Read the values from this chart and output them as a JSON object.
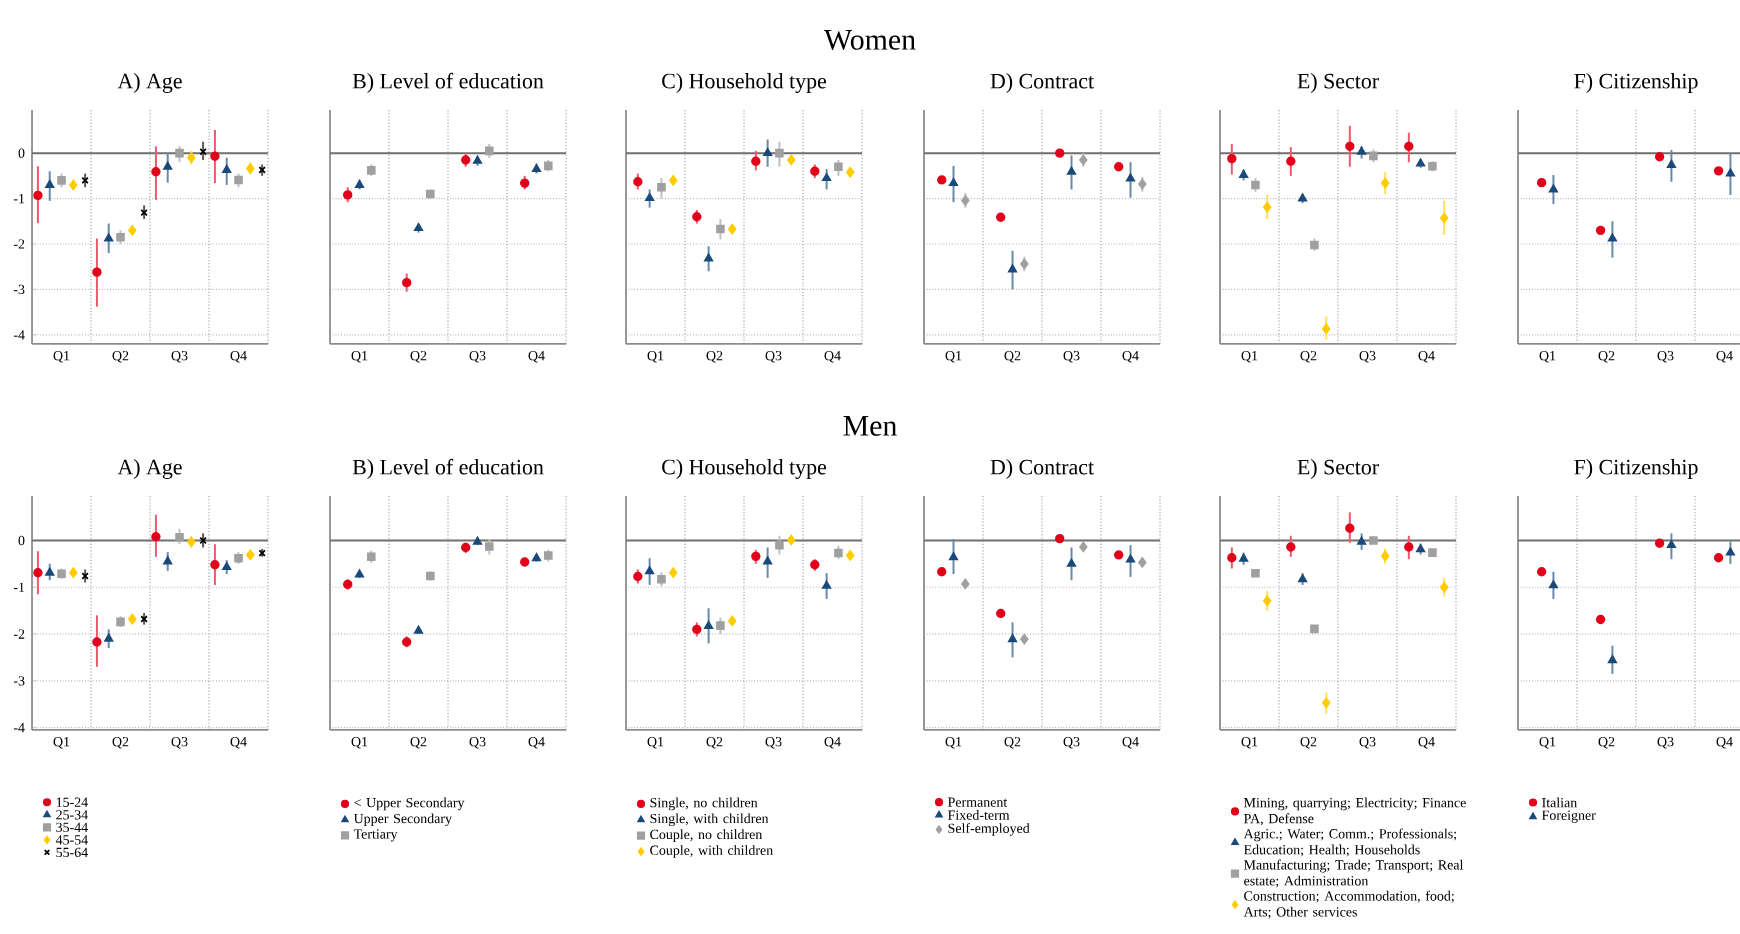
{
  "chart_data": [
    {
      "type": "scatter",
      "title": "A) Age",
      "categories": [
        "Q1",
        "Q2",
        "Q3",
        "Q4"
      ],
      "ylim": [
        -4.2,
        0.95
      ],
      "yticks": [
        -4,
        -3,
        -2,
        -1,
        0
      ],
      "grid": true,
      "legend": false,
      "ref_lines": [
        {
          "axis": "y",
          "value": 0,
          "color": "#707070"
        }
      ],
      "series": [
        {
          "color": "#e2001a",
          "marker": "circle",
          "values": [
            -0.93,
            -2.62,
            -0.41,
            -0.07
          ],
          "errors": [
            [
              -1.54,
              -0.29
            ],
            [
              -3.38,
              -1.88
            ],
            [
              -1.03,
              0.15
            ],
            [
              -0.66,
              0.51
            ]
          ]
        },
        {
          "color": "#1a4a7a",
          "marker": "triangle",
          "values": [
            -0.7,
            -1.88,
            -0.3,
            -0.37
          ],
          "errors": [
            [
              -1.05,
              -0.4
            ],
            [
              -2.2,
              -1.55
            ],
            [
              -0.65,
              0
            ],
            [
              -0.7,
              -0.1
            ]
          ]
        },
        {
          "color": "#a0a0a0",
          "marker": "square",
          "values": [
            -0.6,
            -1.85,
            0,
            -0.59
          ],
          "errors": [
            [
              -0.75,
              -0.45
            ],
            [
              -2.0,
              -1.7
            ],
            [
              -0.2,
              0.15
            ],
            [
              -0.75,
              -0.45
            ]
          ]
        },
        {
          "color": "#ffcc00",
          "marker": "diamond",
          "values": [
            -0.7,
            -1.7,
            -0.1,
            -0.34
          ],
          "errors": [
            [
              -0.8,
              -0.6
            ],
            [
              -1.8,
              -1.6
            ],
            [
              -0.25,
              0.05
            ],
            [
              -0.45,
              -0.2
            ]
          ]
        },
        {
          "color": "#000000",
          "marker": "cross",
          "values": [
            -0.6,
            -1.31,
            0.03,
            -0.37
          ],
          "errors": [
            [
              -0.75,
              -0.45
            ],
            [
              -1.45,
              -1.15
            ],
            [
              -0.15,
              0.25
            ],
            [
              -0.5,
              -0.25
            ]
          ]
        }
      ]
    },
    {
      "type": "scatter",
      "title": "B) Level of education",
      "categories": [
        "Q1",
        "Q2",
        "Q3",
        "Q4"
      ],
      "ylim": [
        -4.2,
        0.95
      ],
      "yticks": [
        -4,
        -3,
        -2,
        -1,
        0
      ],
      "tick_labels": "x",
      "grid": true,
      "legend": false,
      "ref_lines": [
        {
          "axis": "y",
          "value": 0,
          "color": "#707070"
        }
      ],
      "series": [
        {
          "color": "#e2001a",
          "marker": "circle",
          "values": [
            -0.92,
            -2.85,
            -0.15,
            -0.66
          ],
          "errors": [
            [
              -1.08,
              -0.75
            ],
            [
              -3.05,
              -2.65
            ],
            [
              -0.3,
              0
            ],
            [
              -0.8,
              -0.5
            ]
          ]
        },
        {
          "color": "#1a4a7a",
          "marker": "triangle",
          "values": [
            -0.7,
            -1.65,
            -0.17,
            -0.35
          ],
          "errors": [
            [
              -0.8,
              -0.6
            ],
            [
              -1.75,
              -1.55
            ],
            [
              -0.28,
              -0.05
            ],
            [
              -0.45,
              -0.25
            ]
          ]
        },
        {
          "color": "#a0a0a0",
          "marker": "square",
          "values": [
            -0.38,
            -0.9,
            0.05,
            -0.28
          ],
          "errors": [
            [
              -0.5,
              -0.25
            ],
            [
              -1.0,
              -0.8
            ],
            [
              -0.1,
              0.2
            ],
            [
              -0.4,
              -0.15
            ]
          ]
        }
      ]
    },
    {
      "type": "scatter",
      "subtitle": "Women",
      "title": "C) Household type",
      "categories": [
        "Q1",
        "Q2",
        "Q3",
        "Q4"
      ],
      "ylim": [
        -4.2,
        0.95
      ],
      "yticks": [
        -4,
        -3,
        -2,
        -1,
        0
      ],
      "tick_labels": "x",
      "grid": true,
      "legend": false,
      "ref_lines": [
        {
          "axis": "y",
          "value": 0,
          "color": "#707070"
        }
      ],
      "series": [
        {
          "color": "#e2001a",
          "marker": "circle",
          "values": [
            -0.63,
            -1.4,
            -0.18,
            -0.4
          ],
          "errors": [
            [
              -0.8,
              -0.45
            ],
            [
              -1.55,
              -1.25
            ],
            [
              -0.38,
              0.05
            ],
            [
              -0.55,
              -0.25
            ]
          ]
        },
        {
          "color": "#1a4a7a",
          "marker": "triangle",
          "values": [
            -0.99,
            -2.32,
            0,
            -0.55
          ],
          "errors": [
            [
              -1.2,
              -0.8
            ],
            [
              -2.6,
              -2.05
            ],
            [
              -0.3,
              0.3
            ],
            [
              -0.8,
              -0.35
            ]
          ]
        },
        {
          "color": "#a0a0a0",
          "marker": "square",
          "values": [
            -0.75,
            -1.67,
            0,
            -0.3
          ],
          "errors": [
            [
              -1.0,
              -0.55
            ],
            [
              -1.9,
              -1.45
            ],
            [
              -0.3,
              0.25
            ],
            [
              -0.5,
              -0.15
            ]
          ]
        },
        {
          "color": "#ffcc00",
          "marker": "diamond",
          "values": [
            -0.6,
            -1.67,
            -0.15,
            -0.42
          ],
          "errors": [
            [
              -0.7,
              -0.5
            ],
            [
              -1.77,
              -1.57
            ],
            [
              -0.25,
              -0.05
            ],
            [
              -0.5,
              -0.32
            ]
          ]
        }
      ]
    },
    {
      "type": "scatter",
      "title": "D) Contract",
      "categories": [
        "Q1",
        "Q2",
        "Q3",
        "Q4"
      ],
      "ylim": [
        -4.2,
        0.95
      ],
      "yticks": [
        -4,
        -3,
        -2,
        -1,
        0
      ],
      "tick_labels": "x",
      "grid": true,
      "legend": false,
      "ref_lines": [
        {
          "axis": "y",
          "value": 0,
          "color": "#707070"
        }
      ],
      "series": [
        {
          "color": "#e2001a",
          "marker": "circle",
          "values": [
            -0.59,
            -1.41,
            0,
            -0.3
          ],
          "errors": [
            [
              -0.65,
              -0.52
            ],
            [
              -1.46,
              -1.36
            ],
            [
              -0.07,
              0.07
            ],
            [
              -0.36,
              -0.24
            ]
          ]
        },
        {
          "color": "#1a4a7a",
          "marker": "triangle",
          "values": [
            -0.66,
            -2.56,
            -0.41,
            -0.56
          ],
          "errors": [
            [
              -1.08,
              -0.28
            ],
            [
              -3.0,
              -2.15
            ],
            [
              -0.8,
              -0.05
            ],
            [
              -0.98,
              -0.2
            ]
          ]
        },
        {
          "color": "#a0a0a0",
          "marker": "diamond",
          "values": [
            -1.04,
            -2.44,
            -0.15,
            -0.68
          ],
          "errors": [
            [
              -1.2,
              -0.88
            ],
            [
              -2.6,
              -2.28
            ],
            [
              -0.3,
              0
            ],
            [
              -0.85,
              -0.52
            ]
          ]
        }
      ]
    },
    {
      "type": "scatter",
      "title": "E) Sector",
      "categories": [
        "Q1",
        "Q2",
        "Q3",
        "Q4"
      ],
      "ylim": [
        -4.2,
        0.95
      ],
      "yticks": [
        -4,
        -3,
        -2,
        -1,
        0
      ],
      "tick_labels": "x",
      "grid": true,
      "legend": false,
      "ref_lines": [
        {
          "axis": "y",
          "value": 0,
          "color": "#707070"
        }
      ],
      "series": [
        {
          "color": "#e2001a",
          "marker": "circle",
          "values": [
            -0.12,
            -0.18,
            0.15,
            0.15
          ],
          "errors": [
            [
              -0.47,
              0.2
            ],
            [
              -0.5,
              0.13
            ],
            [
              -0.3,
              0.6
            ],
            [
              -0.2,
              0.45
            ]
          ]
        },
        {
          "color": "#1a4a7a",
          "marker": "triangle",
          "values": [
            -0.48,
            -1.0,
            0.03,
            -0.23
          ],
          "errors": [
            [
              -0.6,
              -0.36
            ],
            [
              -1.1,
              -0.9
            ],
            [
              -0.12,
              0.15
            ],
            [
              -0.32,
              -0.14
            ]
          ]
        },
        {
          "color": "#a0a0a0",
          "marker": "square",
          "values": [
            -0.7,
            -2.02,
            -0.06,
            -0.29
          ],
          "errors": [
            [
              -0.85,
              -0.55
            ],
            [
              -2.15,
              -1.88
            ],
            [
              -0.2,
              0.08
            ],
            [
              -0.4,
              -0.18
            ]
          ]
        },
        {
          "color": "#ffcc00",
          "marker": "diamond",
          "values": [
            -1.19,
            -3.87,
            -0.66,
            -1.43
          ],
          "errors": [
            [
              -1.45,
              -0.92
            ],
            [
              -4.1,
              -3.6
            ],
            [
              -0.9,
              -0.42
            ],
            [
              -1.8,
              -1.05
            ]
          ]
        }
      ]
    },
    {
      "type": "scatter",
      "title": "F) Citizenship",
      "categories": [
        "Q1",
        "Q2",
        "Q3",
        "Q4"
      ],
      "ylim": [
        -4.2,
        0.95
      ],
      "yticks": [
        -4,
        -3,
        -2,
        -1,
        0
      ],
      "tick_labels": "x",
      "grid": true,
      "legend": false,
      "ref_lines": [
        {
          "axis": "y",
          "value": 0,
          "color": "#707070"
        }
      ],
      "series": [
        {
          "color": "#e2001a",
          "marker": "circle",
          "values": [
            -0.65,
            -1.7,
            -0.08,
            -0.39
          ],
          "errors": [
            [
              -0.7,
              -0.58
            ],
            [
              -1.76,
              -1.64
            ],
            [
              -0.14,
              -0.02
            ],
            [
              -0.45,
              -0.33
            ]
          ]
        },
        {
          "color": "#1a4a7a",
          "marker": "triangle",
          "values": [
            -0.8,
            -1.88,
            -0.26,
            -0.45
          ],
          "errors": [
            [
              -1.12,
              -0.48
            ],
            [
              -2.3,
              -1.5
            ],
            [
              -0.63,
              0.07
            ],
            [
              -0.92,
              0.0
            ]
          ]
        }
      ]
    },
    {
      "type": "scatter",
      "title": "A) Age",
      "categories": [
        "Q1",
        "Q2",
        "Q3",
        "Q4"
      ],
      "ylim": [
        -4.05,
        0.95
      ],
      "yticks": [
        -4,
        -3,
        -2,
        -1,
        0
      ],
      "grid": true,
      "legend": "bottom",
      "ref_lines": [
        {
          "axis": "y",
          "value": 0,
          "color": "#707070"
        }
      ],
      "series": [
        {
          "name": "15-24",
          "color": "#e2001a",
          "marker": "circle",
          "values": [
            -0.69,
            -2.17,
            0.08,
            -0.52
          ],
          "errors": [
            [
              -1.15,
              -0.23
            ],
            [
              -2.7,
              -1.6
            ],
            [
              -0.35,
              0.55
            ],
            [
              -0.95,
              -0.08
            ]
          ]
        },
        {
          "name": "25-34",
          "color": "#1a4a7a",
          "marker": "triangle",
          "values": [
            -0.69,
            -2.1,
            -0.45,
            -0.57
          ],
          "errors": [
            [
              -0.85,
              -0.5
            ],
            [
              -2.3,
              -1.9
            ],
            [
              -0.65,
              -0.25
            ],
            [
              -0.72,
              -0.42
            ]
          ]
        },
        {
          "name": "35-44",
          "color": "#a0a0a0",
          "marker": "square",
          "values": [
            -0.71,
            -1.74,
            0.07,
            -0.38
          ],
          "errors": [
            [
              -0.82,
              -0.6
            ],
            [
              -1.85,
              -1.62
            ],
            [
              -0.08,
              0.25
            ],
            [
              -0.5,
              -0.25
            ]
          ]
        },
        {
          "name": "45-54",
          "color": "#ffcc00",
          "marker": "diamond",
          "values": [
            -0.69,
            -1.68,
            -0.03,
            -0.31
          ],
          "errors": [
            [
              -0.78,
              -0.6
            ],
            [
              -1.78,
              -1.58
            ],
            [
              -0.15,
              0.08
            ],
            [
              -0.4,
              -0.22
            ]
          ]
        },
        {
          "name": "55-64",
          "color": "#000000",
          "marker": "cross",
          "values": [
            -0.76,
            -1.68,
            0,
            -0.27
          ],
          "errors": [
            [
              -0.9,
              -0.62
            ],
            [
              -1.8,
              -1.55
            ],
            [
              -0.15,
              0.15
            ],
            [
              -0.35,
              -0.18
            ]
          ]
        }
      ]
    },
    {
      "type": "scatter",
      "title": "B) Level of education",
      "categories": [
        "Q1",
        "Q2",
        "Q3",
        "Q4"
      ],
      "ylim": [
        -4.05,
        0.95
      ],
      "yticks": [
        -4,
        -3,
        -2,
        -1,
        0
      ],
      "tick_labels": "x",
      "grid": true,
      "legend": "bottom",
      "ref_lines": [
        {
          "axis": "y",
          "value": 0,
          "color": "#707070"
        }
      ],
      "series": [
        {
          "name": "< Upper Secondary",
          "color": "#e2001a",
          "marker": "circle",
          "values": [
            -0.94,
            -2.17,
            -0.15,
            -0.46
          ],
          "errors": [
            [
              -1.05,
              -0.83
            ],
            [
              -2.28,
              -2.05
            ],
            [
              -0.27,
              -0.05
            ],
            [
              -0.55,
              -0.37
            ]
          ]
        },
        {
          "name": "Upper Secondary",
          "color": "#1a4a7a",
          "marker": "triangle",
          "values": [
            -0.73,
            -1.93,
            -0.03,
            -0.38
          ],
          "errors": [
            [
              -0.8,
              -0.66
            ],
            [
              -2.0,
              -1.86
            ],
            [
              -0.1,
              0.03
            ],
            [
              -0.45,
              -0.31
            ]
          ]
        },
        {
          "name": "Tertiary",
          "color": "#a0a0a0",
          "marker": "square",
          "values": [
            -0.35,
            -0.76,
            -0.13,
            -0.32
          ],
          "errors": [
            [
              -0.48,
              -0.22
            ],
            [
              -0.86,
              -0.66
            ],
            [
              -0.3,
              0.03
            ],
            [
              -0.45,
              -0.2
            ]
          ]
        }
      ]
    },
    {
      "type": "scatter",
      "subtitle": "Men",
      "title": "C) Household type",
      "categories": [
        "Q1",
        "Q2",
        "Q3",
        "Q4"
      ],
      "ylim": [
        -4.05,
        0.95
      ],
      "yticks": [
        -4,
        -3,
        -2,
        -1,
        0
      ],
      "tick_labels": "x",
      "grid": true,
      "legend": "bottom",
      "ref_lines": [
        {
          "axis": "y",
          "value": 0,
          "color": "#707070"
        }
      ],
      "series": [
        {
          "name": "Single, no children",
          "color": "#e2001a",
          "marker": "circle",
          "values": [
            -0.77,
            -1.9,
            -0.34,
            -0.52
          ],
          "errors": [
            [
              -0.92,
              -0.62
            ],
            [
              -2.05,
              -1.75
            ],
            [
              -0.5,
              -0.2
            ],
            [
              -0.65,
              -0.4
            ]
          ]
        },
        {
          "name": "Single, with children",
          "color": "#1a4a7a",
          "marker": "triangle",
          "values": [
            -0.66,
            -1.83,
            -0.45,
            -0.97
          ],
          "errors": [
            [
              -0.95,
              -0.38
            ],
            [
              -2.2,
              -1.45
            ],
            [
              -0.8,
              -0.15
            ],
            [
              -1.25,
              -0.7
            ]
          ]
        },
        {
          "name": "Couple, no children",
          "color": "#a0a0a0",
          "marker": "square",
          "values": [
            -0.83,
            -1.82,
            -0.1,
            -0.27
          ],
          "errors": [
            [
              -0.98,
              -0.68
            ],
            [
              -2.0,
              -1.65
            ],
            [
              -0.3,
              0.1
            ],
            [
              -0.4,
              -0.12
            ]
          ]
        },
        {
          "name": "Couple, with children",
          "color": "#ffcc00",
          "marker": "diamond",
          "values": [
            -0.69,
            -1.72,
            0.01,
            -0.32
          ],
          "errors": [
            [
              -0.76,
              -0.62
            ],
            [
              -1.8,
              -1.64
            ],
            [
              -0.06,
              0.08
            ],
            [
              -0.38,
              -0.26
            ]
          ]
        }
      ]
    },
    {
      "type": "scatter",
      "title": "D) Contract",
      "categories": [
        "Q1",
        "Q2",
        "Q3",
        "Q4"
      ],
      "ylim": [
        -4.05,
        0.95
      ],
      "yticks": [
        -4,
        -3,
        -2,
        -1,
        0
      ],
      "tick_labels": "x",
      "grid": true,
      "legend": "bottom",
      "ref_lines": [
        {
          "axis": "y",
          "value": 0,
          "color": "#707070"
        }
      ],
      "series": [
        {
          "name": "Permanent",
          "color": "#e2001a",
          "marker": "circle",
          "values": [
            -0.67,
            -1.56,
            0.04,
            -0.31
          ],
          "errors": [
            [
              -0.72,
              -0.62
            ],
            [
              -1.61,
              -1.51
            ],
            [
              -0.01,
              0.09
            ],
            [
              -0.36,
              -0.26
            ]
          ]
        },
        {
          "name": "Fixed-term",
          "color": "#1a4a7a",
          "marker": "triangle",
          "values": [
            -0.36,
            -2.11,
            -0.5,
            -0.41
          ],
          "errors": [
            [
              -0.72,
              0.03
            ],
            [
              -2.5,
              -1.75
            ],
            [
              -0.85,
              -0.15
            ],
            [
              -0.78,
              -0.1
            ]
          ]
        },
        {
          "name": "Self-employed",
          "color": "#a0a0a0",
          "marker": "diamond",
          "values": [
            -0.93,
            -2.11,
            -0.14,
            -0.47
          ],
          "errors": [
            [
              -1.0,
              -0.86
            ],
            [
              -2.2,
              -2.02
            ],
            [
              -0.22,
              -0.06
            ],
            [
              -0.55,
              -0.39
            ]
          ]
        }
      ]
    },
    {
      "type": "scatter",
      "title": "E) Sector",
      "categories": [
        "Q1",
        "Q2",
        "Q3",
        "Q4"
      ],
      "ylim": [
        -4.05,
        0.95
      ],
      "yticks": [
        -4,
        -3,
        -2,
        -1,
        0
      ],
      "tick_labels": "x",
      "grid": true,
      "legend": "bottom",
      "ref_lines": [
        {
          "axis": "y",
          "value": 0,
          "color": "#707070"
        }
      ],
      "series": [
        {
          "name": "Mining, quarrying; Electricity; Finance PA, Defense",
          "color": "#e2001a",
          "marker": "circle",
          "values": [
            -0.37,
            -0.14,
            0.26,
            -0.14
          ],
          "errors": [
            [
              -0.6,
              -0.15
            ],
            [
              -0.35,
              0.1
            ],
            [
              -0.05,
              0.6
            ],
            [
              -0.4,
              0.1
            ]
          ]
        },
        {
          "name": "Agric.; Water; Comm.; Professionals; Education; Health; Households",
          "color": "#1a4a7a",
          "marker": "triangle",
          "values": [
            -0.39,
            -0.83,
            -0.03,
            -0.19
          ],
          "errors": [
            [
              -0.52,
              -0.26
            ],
            [
              -0.95,
              -0.7
            ],
            [
              -0.2,
              0.15
            ],
            [
              -0.3,
              -0.07
            ]
          ]
        },
        {
          "name": "Manufacturing; Trade; Transport; Real estate; Administration",
          "color": "#a0a0a0",
          "marker": "square",
          "values": [
            -0.7,
            -1.89,
            0,
            -0.26
          ],
          "errors": [
            [
              -0.76,
              -0.64
            ],
            [
              -1.95,
              -1.82
            ],
            [
              -0.05,
              0.05
            ],
            [
              -0.3,
              -0.2
            ]
          ]
        },
        {
          "name": "Construction; Accommodation, food; Arts; Other services",
          "color": "#ffcc00",
          "marker": "diamond",
          "values": [
            -1.29,
            -3.47,
            -0.33,
            -1.0
          ],
          "errors": [
            [
              -1.5,
              -1.08
            ],
            [
              -3.7,
              -3.25
            ],
            [
              -0.5,
              -0.17
            ],
            [
              -1.2,
              -0.8
            ]
          ]
        }
      ]
    },
    {
      "type": "scatter",
      "title": "F) Citizenship",
      "categories": [
        "Q1",
        "Q2",
        "Q3",
        "Q4"
      ],
      "ylim": [
        -4.05,
        0.95
      ],
      "yticks": [
        -4,
        -3,
        -2,
        -1,
        0
      ],
      "tick_labels": "x",
      "grid": true,
      "legend": "bottom",
      "ref_lines": [
        {
          "axis": "y",
          "value": 0,
          "color": "#707070"
        }
      ],
      "series": [
        {
          "name": "Italian",
          "color": "#e2001a",
          "marker": "circle",
          "values": [
            -0.67,
            -1.69,
            -0.06,
            -0.37
          ],
          "errors": [
            [
              -0.72,
              -0.62
            ],
            [
              -1.74,
              -1.64
            ],
            [
              -0.11,
              -0.01
            ],
            [
              -0.42,
              -0.32
            ]
          ]
        },
        {
          "name": "Foreigner",
          "color": "#1a4a7a",
          "marker": "triangle",
          "values": [
            -0.96,
            -2.56,
            -0.1,
            -0.26
          ],
          "errors": [
            [
              -1.25,
              -0.67
            ],
            [
              -2.85,
              -2.25
            ],
            [
              -0.4,
              0.15
            ],
            [
              -0.5,
              -0.02
            ]
          ]
        }
      ]
    }
  ]
}
